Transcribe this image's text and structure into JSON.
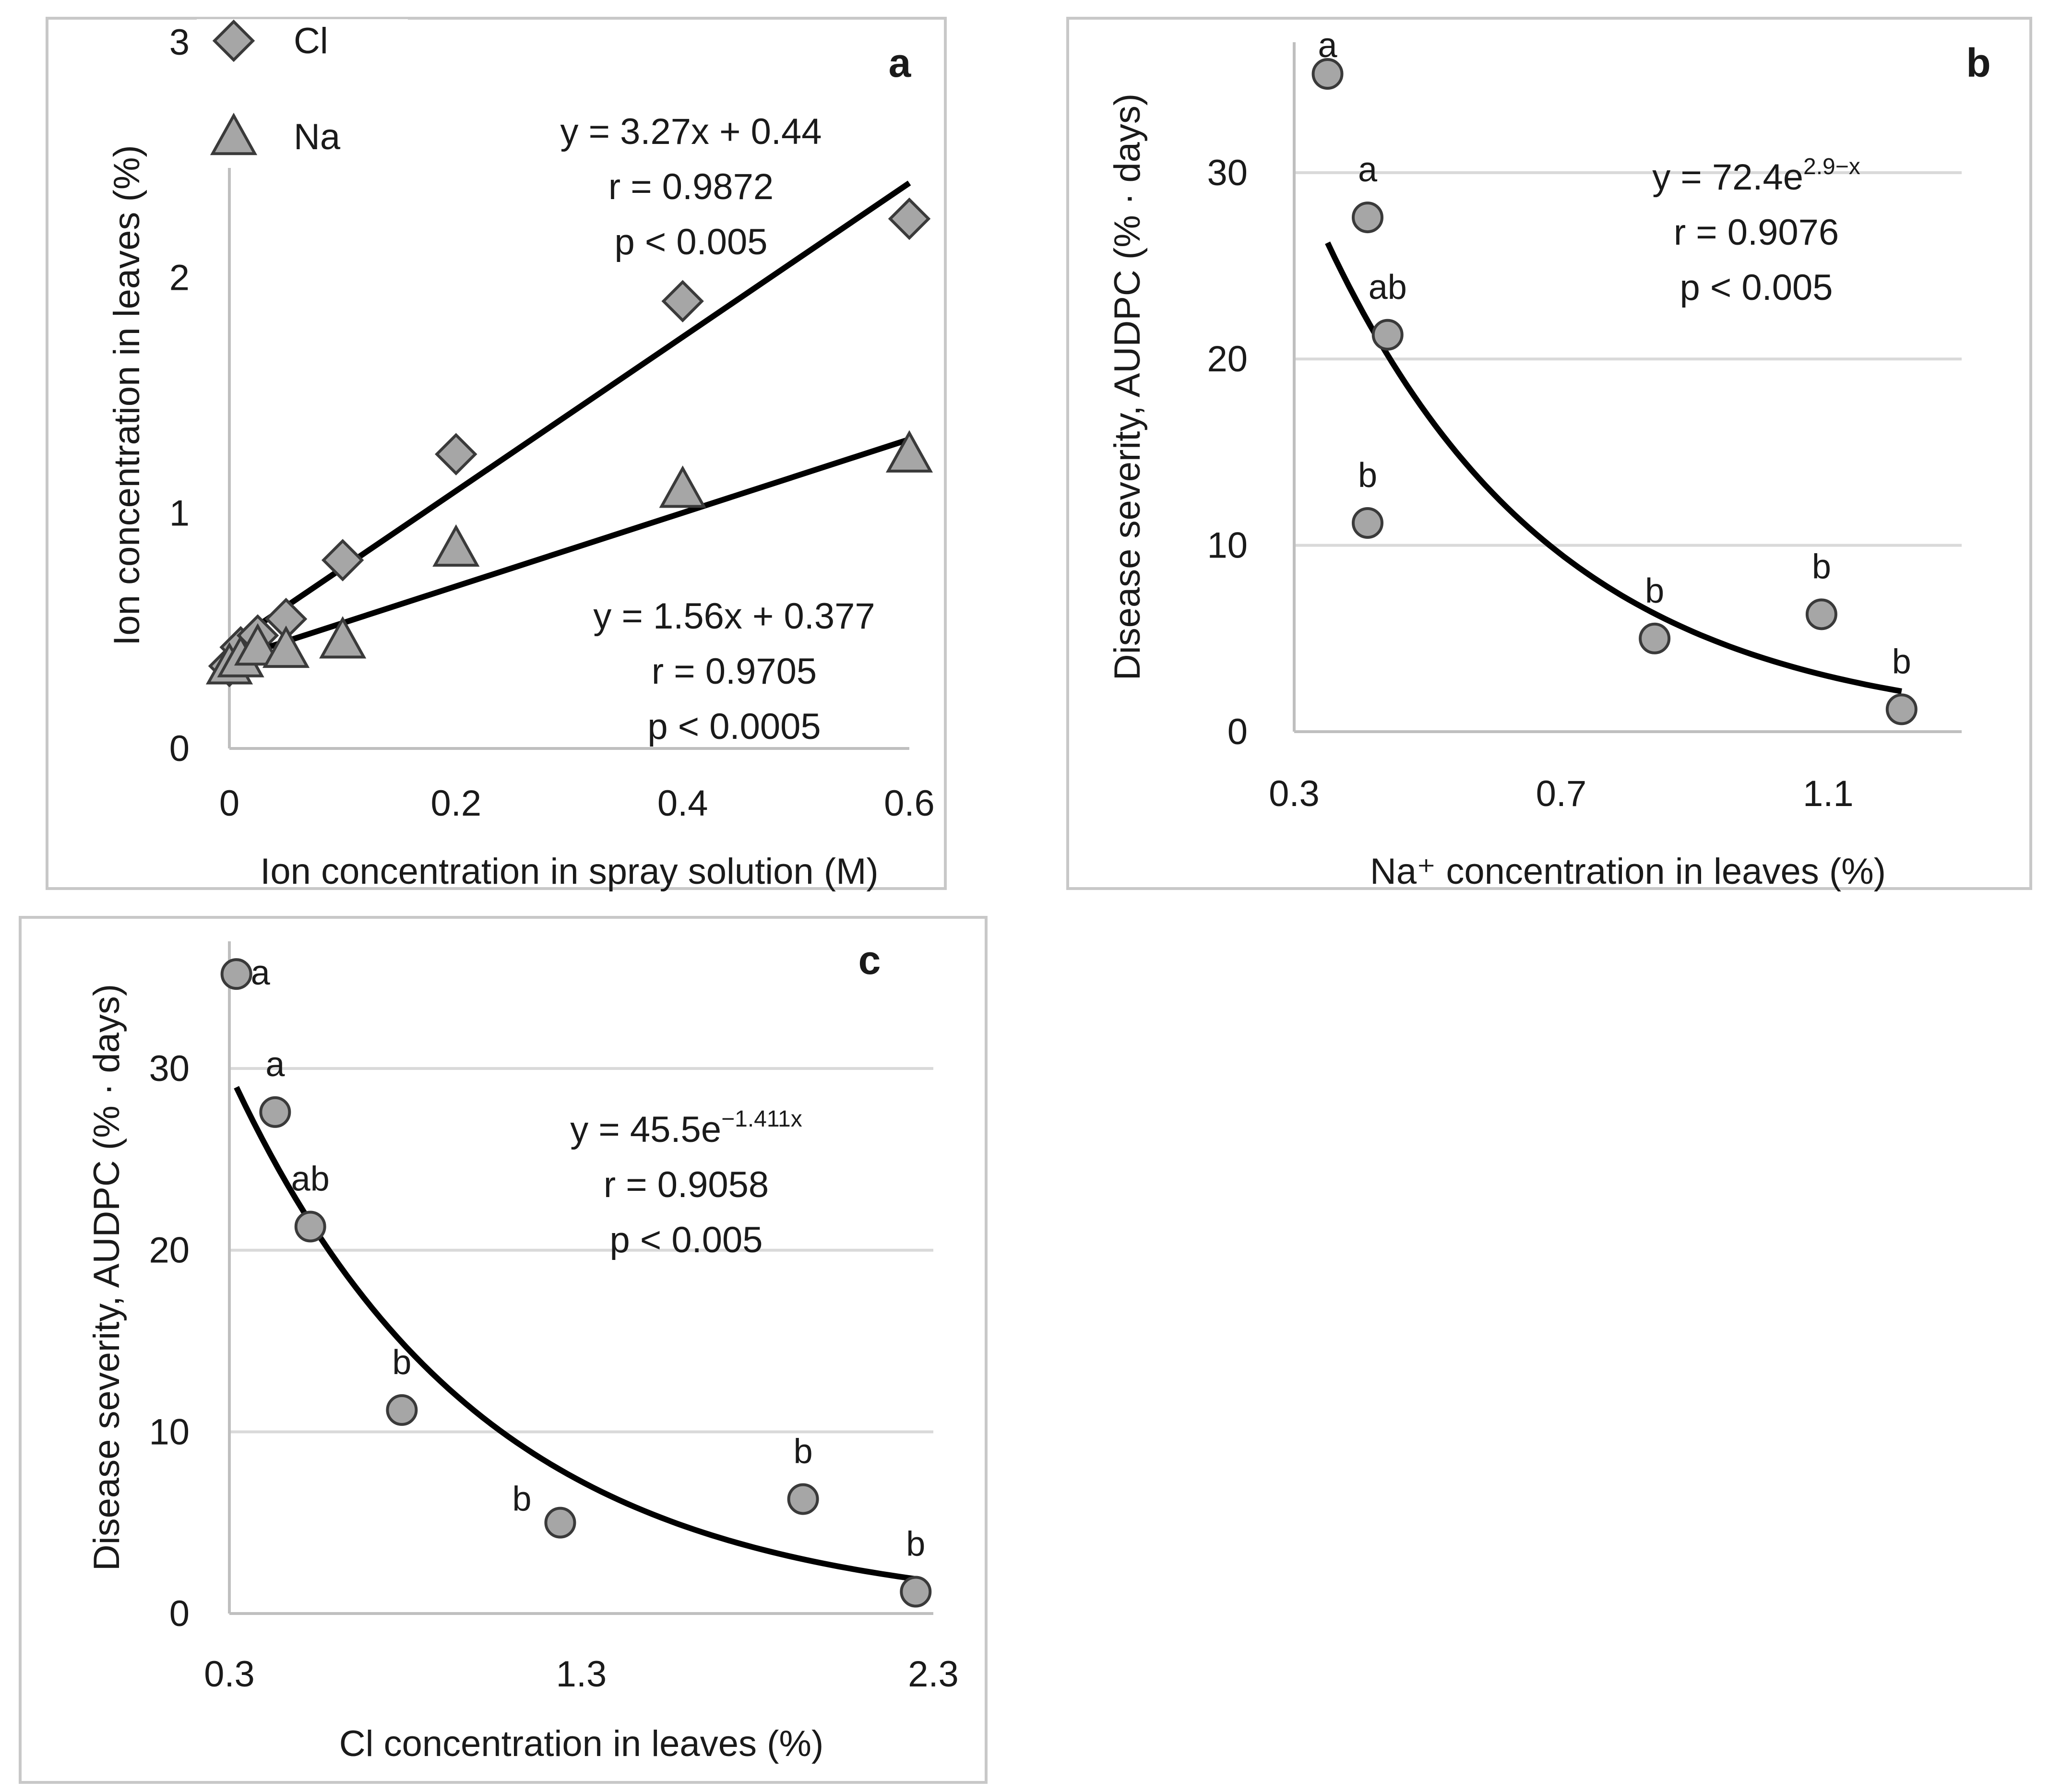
{
  "chart_data": [
    {
      "id": "a",
      "type": "scatter",
      "panel_label": "a",
      "xlabel": "Ion concentration in spray solution (M)",
      "ylabel": "Ion concentration in leaves (%)",
      "xlim": [
        0,
        0.6
      ],
      "ylim": [
        0,
        3
      ],
      "xticks": [
        "0",
        "0.2",
        "0.4",
        "0.6"
      ],
      "xtick_values": [
        0,
        0.2,
        0.4,
        0.6
      ],
      "yticks": [
        "0",
        "1",
        "2",
        "3"
      ],
      "ytick_values": [
        0,
        1,
        2,
        3
      ],
      "grid": false,
      "legend_position": "top-left",
      "series": [
        {
          "name": "Cl",
          "marker": "diamond",
          "x": [
            0,
            0.01,
            0.025,
            0.05,
            0.1,
            0.2,
            0.4,
            0.6
          ],
          "y": [
            0.35,
            0.43,
            0.48,
            0.55,
            0.8,
            1.25,
            1.9,
            2.25
          ],
          "fit": {
            "type": "linear",
            "slope": 3.27,
            "intercept": 0.44
          },
          "annotation": [
            "y = 3.27x + 0.44",
            "r = 0.9872",
            "p < 0.005"
          ]
        },
        {
          "name": "Na",
          "marker": "triangle",
          "x": [
            0,
            0.01,
            0.025,
            0.05,
            0.1,
            0.2,
            0.4,
            0.6
          ],
          "y": [
            0.35,
            0.38,
            0.43,
            0.42,
            0.46,
            0.85,
            1.1,
            1.25
          ],
          "fit": {
            "type": "linear",
            "slope": 1.56,
            "intercept": 0.377
          },
          "annotation": [
            "y = 1.56x + 0.377",
            "r = 0.9705",
            "p < 0.0005"
          ]
        }
      ]
    },
    {
      "id": "b",
      "type": "scatter",
      "panel_label": "b",
      "xlabel": "Na⁺ concentration in leaves (%)",
      "ylabel": "Disease severity, AUDPC (% · days)",
      "xlim": [
        0.3,
        1.3
      ],
      "ylim": [
        0,
        37
      ],
      "xticks": [
        "0.3",
        "0.7",
        "1.1"
      ],
      "xtick_values": [
        0.3,
        0.7,
        1.1
      ],
      "yticks": [
        "0",
        "10",
        "20",
        "30"
      ],
      "ytick_values": [
        0,
        10,
        20,
        30
      ],
      "grid": true,
      "series": [
        {
          "marker": "circle",
          "x": [
            0.35,
            0.41,
            0.44,
            0.41,
            0.84,
            1.09,
            1.21
          ],
          "y": [
            35.3,
            27.6,
            21.3,
            11.2,
            5.0,
            6.3,
            1.2
          ],
          "point_labels": [
            "a",
            "a",
            "ab",
            "b",
            "b",
            "b",
            "b"
          ],
          "fit": {
            "type": "exponential",
            "a": 72.4,
            "k": -2.9,
            "x_range": [
              0.35,
              1.21
            ]
          },
          "annotation": [
            "y = 72.4e",
            "2.9−x",
            "r =  0.9076",
            "p < 0.005"
          ]
        }
      ]
    },
    {
      "id": "c",
      "type": "scatter",
      "panel_label": "c",
      "xlabel": "Cl concentration in leaves (%)",
      "ylabel": "Disease severity, AUDPC (% · days)",
      "xlim": [
        0.3,
        2.3
      ],
      "ylim": [
        0,
        37
      ],
      "xticks": [
        "0.3",
        "1.3",
        "2.3"
      ],
      "xtick_values": [
        0.3,
        1.3,
        2.3
      ],
      "yticks": [
        "0",
        "10",
        "20",
        "30"
      ],
      "ytick_values": [
        0,
        10,
        20,
        30
      ],
      "grid": true,
      "series": [
        {
          "marker": "circle",
          "x": [
            0.32,
            0.43,
            0.53,
            0.79,
            1.24,
            1.93,
            2.25
          ],
          "y": [
            35.2,
            27.6,
            21.3,
            11.2,
            5.0,
            6.3,
            1.2
          ],
          "point_labels": [
            "a",
            "a",
            "ab",
            "b",
            "b",
            "b",
            "b"
          ],
          "fit": {
            "type": "exponential",
            "a": 45.5,
            "k": -1.411,
            "x_range": [
              0.32,
              2.25
            ]
          },
          "annotation": [
            "y = 45.5e",
            "−1.411x",
            "r = 0.9058",
            "p < 0.005"
          ]
        }
      ]
    }
  ]
}
